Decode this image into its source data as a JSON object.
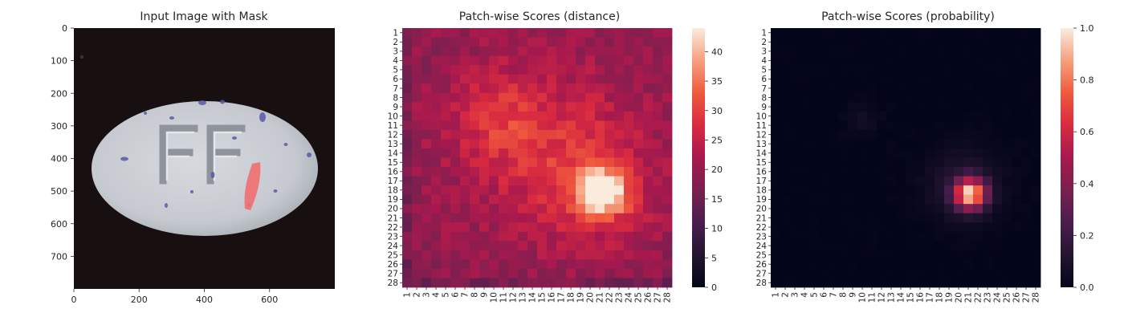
{
  "chart_data": [
    {
      "type": "image",
      "title": "Input Image with Mask",
      "x_ticks": [
        0,
        200,
        400,
        600
      ],
      "y_ticks": [
        0,
        100,
        200,
        300,
        400,
        500,
        600,
        700
      ],
      "xlim": [
        0,
        800
      ],
      "ylim": [
        800,
        0
      ],
      "image": {
        "background_color": "#181010",
        "object_color": "#c9cdd3",
        "embossed_text": "FF",
        "mask_color": "#f06f70",
        "speck_color": "#5a58a8"
      }
    },
    {
      "type": "heatmap",
      "title": "Patch-wise Scores (distance)",
      "rows": 28,
      "cols": 28,
      "row_labels": [
        "1",
        "2",
        "3",
        "4",
        "5",
        "6",
        "7",
        "8",
        "9",
        "10",
        "11",
        "12",
        "13",
        "14",
        "15",
        "16",
        "17",
        "18",
        "19",
        "20",
        "21",
        "22",
        "23",
        "24",
        "25",
        "26",
        "27",
        "28"
      ],
      "col_labels": [
        "1",
        "2",
        "3",
        "4",
        "5",
        "6",
        "7",
        "8",
        "9",
        "10",
        "11",
        "12",
        "13",
        "14",
        "15",
        "16",
        "17",
        "18",
        "19",
        "20",
        "21",
        "22",
        "23",
        "24",
        "25",
        "26",
        "27",
        "28"
      ],
      "colorbar": {
        "min": 0,
        "max": 44,
        "ticks": [
          0,
          5,
          10,
          15,
          20,
          25,
          30,
          35,
          40
        ]
      },
      "colormap": "rocket",
      "value_model": {
        "base": 19,
        "blobs": [
          {
            "row": 18.3,
            "col": 21.3,
            "sigma": 1.7,
            "amplitude": 24
          },
          {
            "row": 17.5,
            "col": 20.5,
            "sigma": 4.8,
            "amplitude": 7
          },
          {
            "row": 10.5,
            "col": 10.5,
            "sigma": 3.2,
            "amplitude": 6
          },
          {
            "row": 12.5,
            "col": 15,
            "sigma": 7,
            "amplitude": 6
          }
        ]
      }
    },
    {
      "type": "heatmap",
      "title": "Patch-wise Scores (probability)",
      "rows": 28,
      "cols": 28,
      "row_labels": [
        "1",
        "2",
        "3",
        "4",
        "5",
        "6",
        "7",
        "8",
        "9",
        "10",
        "11",
        "12",
        "13",
        "14",
        "15",
        "16",
        "17",
        "18",
        "19",
        "20",
        "21",
        "22",
        "23",
        "24",
        "25",
        "26",
        "27",
        "28"
      ],
      "col_labels": [
        "1",
        "2",
        "3",
        "4",
        "5",
        "6",
        "7",
        "8",
        "9",
        "10",
        "11",
        "12",
        "13",
        "14",
        "15",
        "16",
        "17",
        "18",
        "19",
        "20",
        "21",
        "22",
        "23",
        "24",
        "25",
        "26",
        "27",
        "28"
      ],
      "colorbar": {
        "min": 0,
        "max": 1,
        "ticks": [
          "0.0",
          "0.2",
          "0.4",
          "0.6",
          "0.8",
          "1.0"
        ]
      },
      "colormap": "rocket",
      "value_model": {
        "base": 0,
        "blobs": [
          {
            "row": 18.4,
            "col": 21.2,
            "sigma": 1.15,
            "amplitude": 0.9
          },
          {
            "row": 17.5,
            "col": 20.5,
            "sigma": 2.8,
            "amplitude": 0.12
          },
          {
            "row": 10.5,
            "col": 10,
            "sigma": 1.2,
            "amplitude": 0.06
          }
        ]
      }
    }
  ]
}
